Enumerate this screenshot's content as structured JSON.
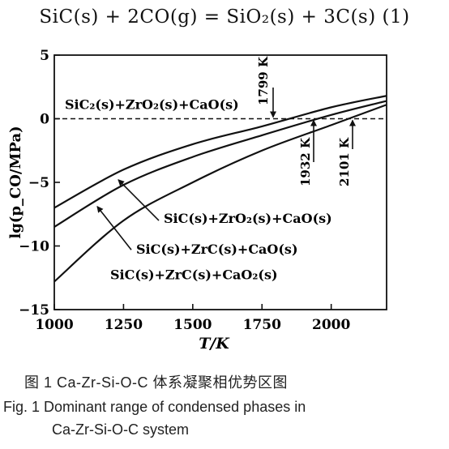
{
  "equation": "SiC(s) + 2CO(g) = SiO₂(s) + 3C(s)   (1)",
  "caption": {
    "cn": "图 1   Ca-Zr-Si-O-C 体系凝聚相优势区图",
    "en_line1": "Fig. 1   Dominant range of condensed phases in",
    "en_line2": "Ca-Zr-Si-O-C system"
  },
  "chart_data": {
    "type": "line",
    "title": "",
    "xlabel": "T/K",
    "ylabel": "lg(p_CO/MPa)",
    "xlim": [
      1000,
      2200
    ],
    "ylim": [
      -15,
      5
    ],
    "xticks": [
      1000,
      1250,
      1500,
      1750,
      2000
    ],
    "yticks": [
      5,
      0,
      -5,
      -10,
      -15
    ],
    "grid": false,
    "reference_line": {
      "y": 0,
      "style": "dashed"
    },
    "region_label": "SiC₂(s)+ZrO₂(s)+CaO(s)",
    "series": [
      {
        "name": "SiC(s)+ZrO₂(s)+CaO(s)",
        "x": [
          1000,
          1250,
          1500,
          1750,
          2000,
          2200
        ],
        "y": [
          -7.0,
          -4.0,
          -2.0,
          -0.6,
          0.9,
          1.8
        ]
      },
      {
        "name": "SiC(s)+ZrC(s)+CaO(s)",
        "x": [
          1000,
          1250,
          1500,
          1750,
          2000,
          2200
        ],
        "y": [
          -8.5,
          -5.2,
          -3.0,
          -1.3,
          0.3,
          1.4
        ]
      },
      {
        "name": "SiC(s)+ZrC(s)+CaO₂(s)",
        "x": [
          1000,
          1250,
          1500,
          1750,
          2000,
          2200
        ],
        "y": [
          -12.8,
          -8.0,
          -5.0,
          -2.5,
          -0.5,
          1.1
        ]
      }
    ],
    "crossing_annotations": [
      {
        "label": "1799 K",
        "x": 1799
      },
      {
        "label": "1932 K",
        "x": 1932
      },
      {
        "label": "2101 K",
        "x": 2101
      }
    ]
  }
}
